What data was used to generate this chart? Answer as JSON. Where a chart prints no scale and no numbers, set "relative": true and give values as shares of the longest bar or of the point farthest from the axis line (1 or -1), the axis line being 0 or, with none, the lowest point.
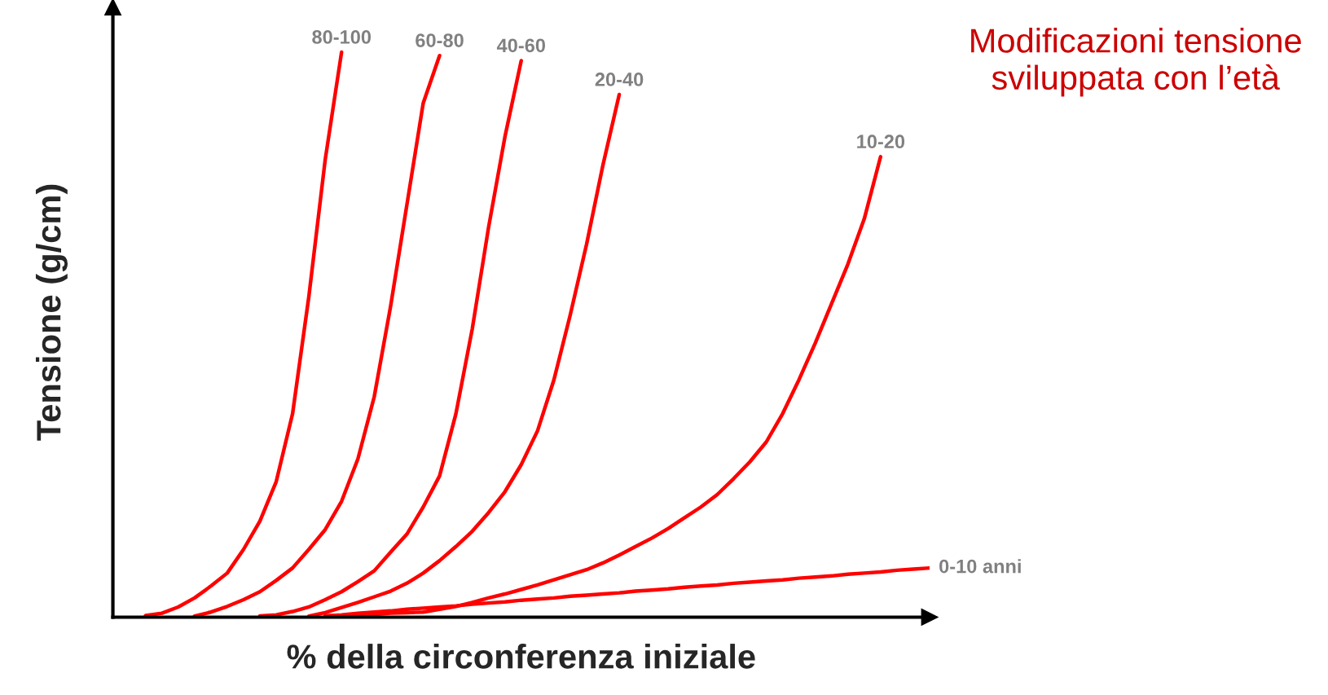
{
  "chart_data": {
    "type": "line",
    "title": "Modificazioni tensione sviluppata con l’età",
    "xlabel": "% della circonferenza iniziale",
    "ylabel": "Tensione (g/cm)",
    "relative": true,
    "legend": false,
    "marker": "none",
    "line_style": "solid",
    "categories": [
      null,
      null,
      null,
      null,
      null,
      null,
      null,
      null,
      null,
      null,
      null,
      null,
      null,
      null,
      null,
      null,
      null,
      null,
      null,
      null,
      null,
      null,
      null,
      null,
      null,
      null,
      null,
      null,
      null,
      null,
      null,
      null,
      null,
      null,
      null,
      null,
      null,
      null,
      null,
      null,
      null,
      null,
      null,
      null,
      null,
      null,
      null,
      null,
      null,
      null,
      null
    ],
    "series": [
      {
        "name": "80-100",
        "color": "#ff0000",
        "values": [
          null,
          null,
          0.003,
          0.007,
          0.018,
          0.034,
          0.055,
          0.078,
          0.12,
          0.17,
          0.24,
          0.36,
          0.568,
          0.81,
          1,
          null,
          null,
          null,
          null,
          null,
          null,
          null,
          null,
          null,
          null,
          null,
          null,
          null,
          null,
          null,
          null,
          null,
          null,
          null,
          null,
          null,
          null,
          null,
          null,
          null,
          null,
          null,
          null,
          null,
          null,
          null,
          null,
          null,
          null,
          null,
          null
        ]
      },
      {
        "name": "60-80",
        "color": "#ff0000",
        "values": [
          null,
          null,
          null,
          null,
          null,
          0.002,
          0.009,
          0.019,
          0.031,
          0.045,
          0.065,
          0.087,
          0.12,
          0.155,
          0.205,
          0.28,
          0.39,
          0.55,
          0.73,
          0.91,
          0.994,
          null,
          null,
          null,
          null,
          null,
          null,
          null,
          null,
          null,
          null,
          null,
          null,
          null,
          null,
          null,
          null,
          null,
          null,
          null,
          null,
          null,
          null,
          null,
          null,
          null,
          null,
          null,
          null,
          null,
          null
        ]
      },
      {
        "name": "40-60",
        "color": "#ff0000",
        "values": [
          null,
          null,
          null,
          null,
          null,
          null,
          null,
          null,
          null,
          0.002,
          0.004,
          0.01,
          0.018,
          0.031,
          0.045,
          0.063,
          0.082,
          0.115,
          0.147,
          0.195,
          0.25,
          0.36,
          0.51,
          0.69,
          0.85,
          0.985,
          null,
          null,
          null,
          null,
          null,
          null,
          null,
          null,
          null,
          null,
          null,
          null,
          null,
          null,
          null,
          null,
          null,
          null,
          null,
          null,
          null,
          null,
          null,
          null,
          null
        ]
      },
      {
        "name": "20-40",
        "color": "#ff0000",
        "values": [
          null,
          null,
          null,
          null,
          null,
          null,
          null,
          null,
          null,
          null,
          null,
          null,
          0.002,
          0.008,
          0.017,
          0.026,
          0.036,
          0.046,
          0.06,
          0.078,
          0.1,
          0.125,
          0.152,
          0.185,
          0.222,
          0.27,
          0.33,
          0.42,
          0.535,
          0.66,
          0.8,
          0.925,
          null,
          null,
          null,
          null,
          null,
          null,
          null,
          null,
          null,
          null,
          null,
          null,
          null,
          null,
          null,
          null,
          null,
          null,
          null
        ]
      },
      {
        "name": "10-20",
        "color": "#ff0000",
        "values": [
          null,
          null,
          null,
          null,
          null,
          null,
          null,
          null,
          null,
          null,
          null,
          null,
          null,
          0.002,
          0.003,
          0.004,
          0.005,
          0.007,
          0.008,
          0.009,
          0.014,
          0.019,
          0.026,
          0.034,
          0.041,
          0.049,
          0.057,
          0.066,
          0.075,
          0.084,
          0.096,
          0.11,
          0.125,
          0.14,
          0.157,
          0.176,
          0.195,
          0.217,
          0.245,
          0.275,
          0.31,
          0.36,
          0.42,
          0.485,
          0.555,
          0.625,
          0.705,
          0.815,
          null,
          null,
          null
        ]
      },
      {
        "name": "0-10 anni",
        "color": "#ff0000",
        "values": [
          null,
          null,
          null,
          null,
          null,
          null,
          null,
          null,
          null,
          null,
          null,
          null,
          null,
          0.002,
          0.004,
          0.007,
          0.009,
          0.011,
          0.014,
          0.016,
          0.018,
          0.02,
          0.023,
          0.025,
          0.027,
          0.03,
          0.032,
          0.034,
          0.037,
          0.039,
          0.041,
          0.043,
          0.046,
          0.048,
          0.05,
          0.053,
          0.055,
          0.057,
          0.06,
          0.062,
          0.064,
          0.066,
          0.069,
          0.071,
          0.073,
          0.076,
          0.078,
          0.08,
          0.083,
          0.085,
          0.087
        ]
      }
    ]
  }
}
